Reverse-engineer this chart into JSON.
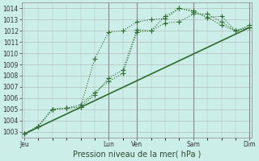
{
  "title": "Pression niveau de la mer( hPa )",
  "bg_color": "#cceee8",
  "grid_color_major": "#aaaaaa",
  "grid_color_minor": "#cccccc",
  "line_color": "#2d6a2d",
  "ylim": [
    1002.5,
    1014.5
  ],
  "yticks": [
    1003,
    1004,
    1005,
    1006,
    1007,
    1008,
    1009,
    1010,
    1011,
    1012,
    1013,
    1014
  ],
  "xtick_labels": [
    "Jeu",
    "Lun",
    "Ven",
    "Sam",
    "Dim"
  ],
  "xtick_positions": [
    0,
    36,
    48,
    72,
    96
  ],
  "vline_positions": [
    36,
    48,
    72,
    96
  ],
  "lines": [
    {
      "x": [
        0,
        6,
        12,
        18,
        24,
        30,
        36,
        42,
        48,
        54,
        60,
        66,
        72,
        78,
        84,
        90,
        96
      ],
      "y": [
        1002.8,
        1003.5,
        1005.0,
        1005.1,
        1005.2,
        1009.5,
        1011.9,
        1012.0,
        1012.8,
        1013.0,
        1013.1,
        1014.0,
        1013.8,
        1013.2,
        1013.3,
        1012.0,
        1012.5
      ],
      "marker": "+",
      "ms": 4,
      "lw": 0.8,
      "ls": ":"
    },
    {
      "x": [
        0,
        6,
        12,
        18,
        24,
        30,
        36,
        42,
        48,
        54,
        60,
        66,
        72,
        78,
        84,
        90,
        96
      ],
      "y": [
        1002.8,
        1003.5,
        1005.0,
        1005.1,
        1005.4,
        1006.5,
        1007.5,
        1008.2,
        1011.9,
        1012.0,
        1012.7,
        1012.8,
        1013.5,
        1013.5,
        1012.8,
        1012.0,
        1012.3
      ],
      "marker": "+",
      "ms": 4,
      "lw": 0.8,
      "ls": ":"
    },
    {
      "x": [
        0,
        6,
        12,
        18,
        24,
        30,
        36,
        42,
        48,
        54,
        60,
        66,
        72,
        78,
        84,
        90,
        96
      ],
      "y": [
        1002.8,
        1003.5,
        1005.0,
        1005.1,
        1005.2,
        1006.3,
        1007.8,
        1008.5,
        1012.1,
        1012.0,
        1013.3,
        1014.0,
        1013.7,
        1013.2,
        1012.5,
        1012.0,
        1012.3
      ],
      "marker": "+",
      "ms": 4,
      "lw": 0.8,
      "ls": ":"
    },
    {
      "x": [
        0,
        96
      ],
      "y": [
        1002.8,
        1012.3
      ],
      "marker": "None",
      "ms": 0,
      "lw": 1.2,
      "ls": "-"
    }
  ],
  "n_hours_total": 96,
  "xlabel_fontsize": 7,
  "tick_fontsize": 5.5
}
